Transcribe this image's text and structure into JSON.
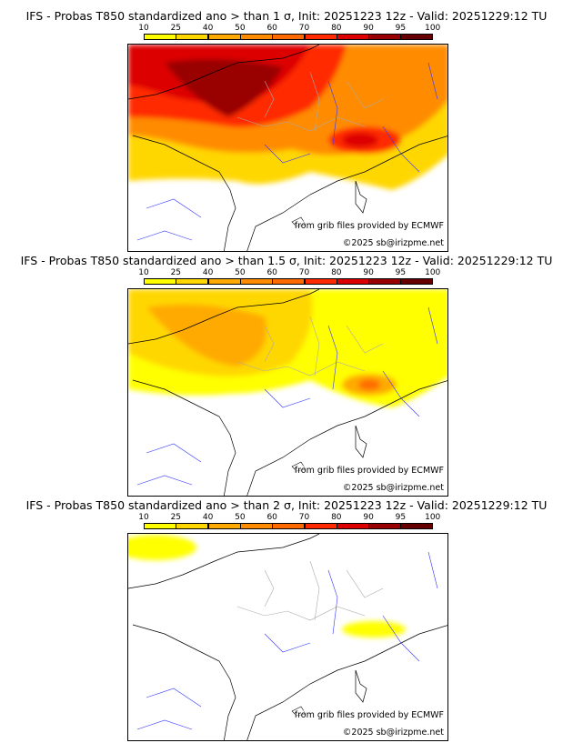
{
  "panels": [
    {
      "title": "IFS - Probas T850  standardized ano > than 1 σ, Init: 20251223 12z - Valid: 20251229:12 TU",
      "source": "from grib files provided by ECMWF",
      "copyright": "©2025 sb@irizpme.net"
    },
    {
      "title": "IFS - Probas T850  standardized ano > than 1.5 σ, Init: 20251223 12z - Valid: 20251229:12 TU",
      "source": "from grib files provided by ECMWF",
      "copyright": "©2025 sb@irizpme.net"
    },
    {
      "title": "IFS - Probas T850  standardized ano > than 2 σ, Init: 20251223 12z - Valid: 20251229:12 TU",
      "source": "from grib files provided by ECMWF",
      "copyright": "©2025 sb@irizpme.net"
    }
  ],
  "colorbar": {
    "ticks": [
      "10",
      "25",
      "40",
      "50",
      "60",
      "70",
      "80",
      "90",
      "95",
      "100"
    ],
    "colors": [
      "#ffff00",
      "#ffd700",
      "#ffaa00",
      "#ff8c00",
      "#ff6a00",
      "#ff2a00",
      "#dd0000",
      "#990000",
      "#660000"
    ]
  }
}
